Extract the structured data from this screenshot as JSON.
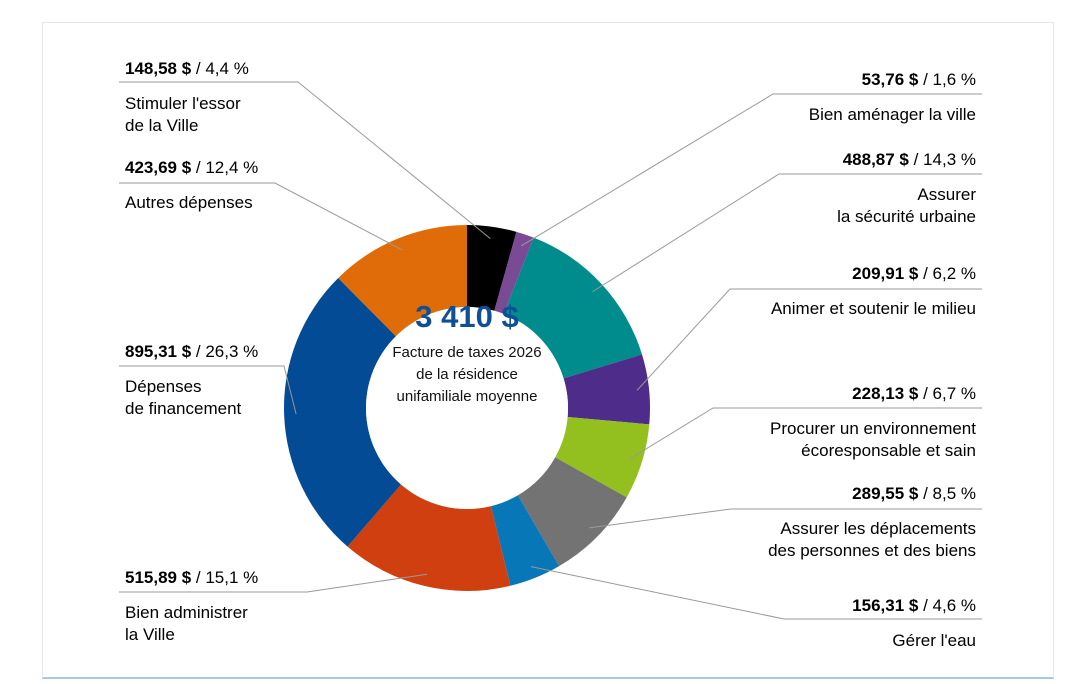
{
  "chart_data": {
    "type": "pie",
    "variant": "donut",
    "center_total": "3 410 $",
    "center_caption": [
      "Facture de taxes 2026",
      "de la résidence",
      "unifamiliale moyenne"
    ],
    "slices": [
      {
        "amount": "148,58 $",
        "percent": " / 4,4 %",
        "label": [
          "Stimuler l'essor",
          "de la Ville"
        ],
        "value": 148.58,
        "color": "#000000"
      },
      {
        "amount": "53,76 $",
        "percent": " / 1,6 %",
        "label": [
          "Bien aménager la ville"
        ],
        "value": 53.76,
        "color": "#7a4a94"
      },
      {
        "amount": "488,87 $",
        "percent": " / 14,3 %",
        "label": [
          "Assurer",
          "la sécurité urbaine"
        ],
        "value": 488.87,
        "color": "#008c8c"
      },
      {
        "amount": "209,91 $",
        "percent": " / 6,2 %",
        "label": [
          "Animer et soutenir le milieu"
        ],
        "value": 209.91,
        "color": "#4e2d8a"
      },
      {
        "amount": "228,13 $",
        "percent": " / 6,7 %",
        "label": [
          "Procurer un environnement",
          "écoresponsable et sain"
        ],
        "value": 228.13,
        "color": "#93c01f"
      },
      {
        "amount": "289,55 $",
        "percent": " / 8,5 %",
        "label": [
          "Assurer les déplacements",
          "des personnes et des biens"
        ],
        "value": 289.55,
        "color": "#737373"
      },
      {
        "amount": "156,31 $",
        "percent": " / 4,6 %",
        "label": [
          "Gérer l'eau"
        ],
        "value": 156.31,
        "color": "#0777b8"
      },
      {
        "amount": "515,89 $",
        "percent": " / 15,1 %",
        "label": [
          "Bien administrer",
          "la Ville"
        ],
        "value": 515.89,
        "color": "#cf3f10"
      },
      {
        "amount": "895,31 $",
        "percent": " / 26,3 %",
        "label": [
          "Dépenses",
          "de financement"
        ],
        "value": 895.31,
        "color": "#044b96"
      },
      {
        "amount": "423,69 $",
        "percent": " / 12,4 %",
        "label": [
          "Autres dépenses"
        ],
        "value": 423.69,
        "color": "#df6c09"
      }
    ]
  }
}
